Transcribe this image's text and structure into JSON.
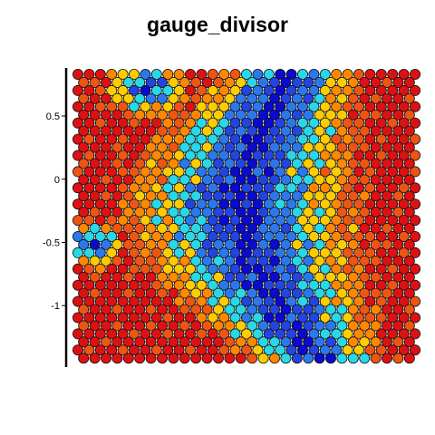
{
  "chart_data": {
    "type": "heatmap",
    "title": "gauge_divisor",
    "xlabel": "",
    "ylabel": "",
    "ylim": [
      -1.4,
      0.83
    ],
    "yticks": [
      {
        "value": 0.5,
        "label": "0.5"
      },
      {
        "value": 0,
        "label": "0"
      },
      {
        "value": -0.5,
        "label": "-0.5"
      },
      {
        "value": -1,
        "label": "-1"
      }
    ],
    "grid": false,
    "legend": "none",
    "grid_size": {
      "cols": 31,
      "rows": 36
    },
    "colormap": [
      "#0a0ad0",
      "#2244e0",
      "#2a78ec",
      "#28d8e8",
      "#ffcc00",
      "#ff8800",
      "#ee5511",
      "#dd1111"
    ],
    "regions": [
      {
        "name": "cool-upper-band",
        "note": "blue band from top middle to bottom middle"
      },
      {
        "name": "warm-left",
        "note": "red/orange left region"
      },
      {
        "name": "warm-right",
        "note": "red/orange right region"
      }
    ],
    "values_note": "hexagonal grid of circles; values 0 (blue) to 7 (red) per cell"
  }
}
